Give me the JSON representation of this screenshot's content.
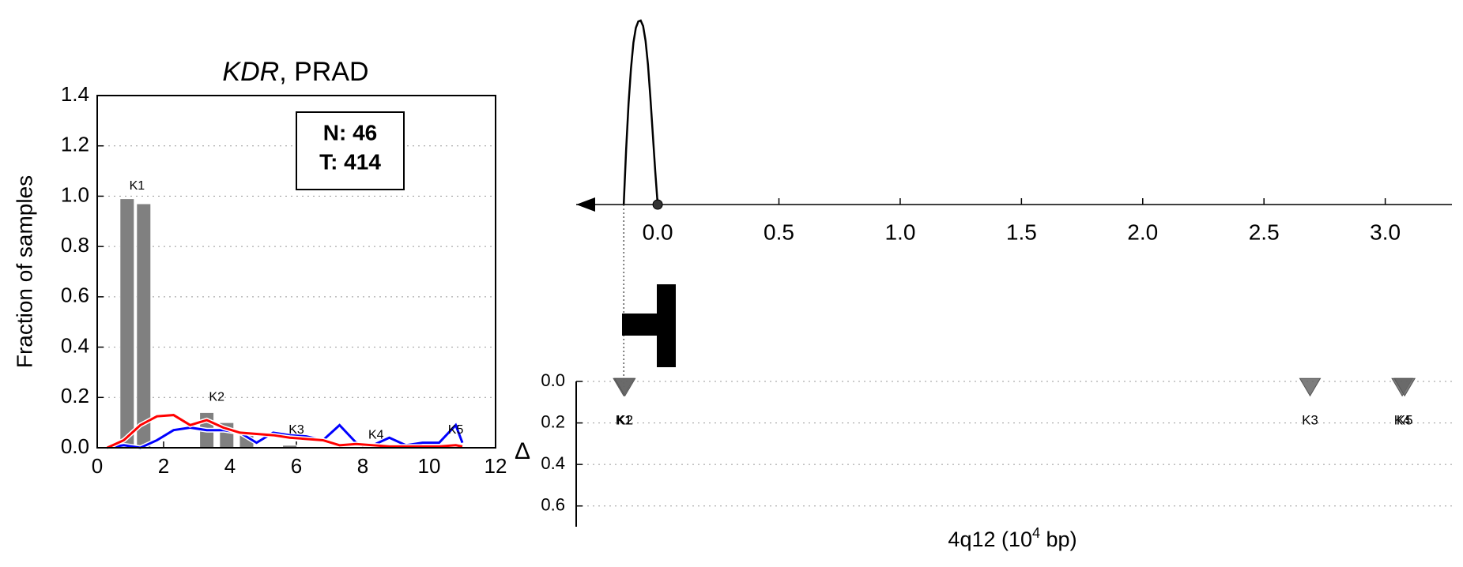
{
  "chart_data": [
    {
      "type": "bar",
      "title": [
        "KDR",
        ", PRAD"
      ],
      "ylabel": "Fraction of samples",
      "x": [
        0.9,
        1.4,
        3.3,
        3.9,
        4.5,
        5.8
      ],
      "values": [
        0.99,
        0.97,
        0.14,
        0.1,
        0.06,
        0.01
      ],
      "color": "#808080",
      "annotations": [
        {
          "text": "K1",
          "x": 1.2,
          "y": 1.04
        },
        {
          "text": "K2",
          "x": 3.6,
          "y": 0.2
        },
        {
          "text": "K3",
          "x": 6.0,
          "y": 0.07
        },
        {
          "text": "K4",
          "x": 8.4,
          "y": 0.05
        },
        {
          "text": "K5",
          "x": 10.8,
          "y": 0.07
        }
      ],
      "legend": [
        "N: 46",
        "T: 414"
      ],
      "series": [
        {
          "color": "#0000ff",
          "x": [
            0.3,
            0.8,
            1.3,
            1.8,
            2.3,
            2.8,
            3.3,
            3.8,
            4.3,
            4.8,
            5.3,
            5.8,
            6.3,
            6.8,
            7.3,
            7.8,
            8.3,
            8.8,
            9.3,
            9.8,
            10.3,
            10.8,
            11.0
          ],
          "values": [
            0,
            0.01,
            0,
            0.03,
            0.07,
            0.08,
            0.07,
            0.07,
            0.06,
            0.02,
            0.06,
            0.05,
            0.045,
            0.03,
            0.09,
            0.02,
            0.01,
            0.04,
            0.01,
            0.02,
            0.02,
            0.09,
            0.02
          ]
        },
        {
          "color": "#ff0000",
          "x": [
            0.3,
            0.8,
            1.3,
            1.8,
            2.3,
            2.8,
            3.3,
            3.8,
            4.3,
            4.8,
            5.3,
            5.8,
            6.3,
            6.8,
            7.3,
            7.8,
            8.3,
            8.8,
            9.3,
            9.8,
            10.3,
            10.8,
            11.0
          ],
          "values": [
            0,
            0.03,
            0.09,
            0.125,
            0.13,
            0.09,
            0.11,
            0.08,
            0.06,
            0.055,
            0.05,
            0.04,
            0.035,
            0.03,
            0.01,
            0.015,
            0.01,
            0.005,
            0.005,
            0.005,
            0.005,
            0.01,
            0.005
          ]
        }
      ],
      "xlim": [
        0,
        12
      ],
      "ylim": [
        0,
        1.4
      ],
      "xticks": [
        0,
        2,
        4,
        6,
        8,
        10,
        12
      ],
      "yticks": [
        {
          "value": 0,
          "label": "0.0"
        },
        {
          "value": 0.2,
          "label": "0.2"
        },
        {
          "value": 0.4,
          "label": "0.4"
        },
        {
          "value": 0.6,
          "label": "0.6"
        },
        {
          "value": 0.8,
          "label": "0.8"
        },
        {
          "value": 1,
          "label": "1.0"
        },
        {
          "value": 1.2,
          "label": "1.2"
        },
        {
          "value": 1.4,
          "label": "1.4"
        }
      ],
      "grid": true
    },
    {
      "type": "line",
      "x": [
        -0.14,
        -0.13,
        -0.12,
        -0.11,
        -0.1,
        -0.09,
        -0.08,
        -0.07,
        -0.06,
        -0.05,
        -0.04,
        -0.03,
        -0.02,
        -0.01,
        0
      ],
      "values": [
        0,
        0.3,
        0.55,
        0.74,
        0.88,
        0.96,
        0.995,
        1,
        0.97,
        0.89,
        0.76,
        0.58,
        0.38,
        0.18,
        0
      ],
      "color": "#000000",
      "marker": {
        "x": 0,
        "y": 0
      },
      "xlim": [
        -0.336,
        3.275
      ],
      "ylim": [
        0,
        1
      ],
      "xticks": [
        {
          "value": 0,
          "label": "0.0"
        },
        {
          "value": 0.5,
          "label": "0.5"
        },
        {
          "value": 1,
          "label": "1.0"
        },
        {
          "value": 1.5,
          "label": "1.5"
        },
        {
          "value": 2,
          "label": "2.0"
        },
        {
          "value": 2.5,
          "label": "2.5"
        },
        {
          "value": 3,
          "label": "3.0"
        }
      ]
    },
    {
      "type": "scatter",
      "ylabel": "Δ",
      "xlabel": [
        "4q12 (10",
        "4",
        " bp)"
      ],
      "labels": [
        "K1",
        "K2",
        "K3",
        "K4",
        "K5"
      ],
      "x": [
        -0.14,
        -0.135,
        2.69,
        3.07,
        3.08
      ],
      "values": [
        0.02,
        0.02,
        0.02,
        0.02,
        0.02
      ],
      "color": "#666666",
      "xlim": [
        -0.336,
        3.275
      ],
      "ylim": [
        0,
        0.7
      ],
      "inverted_y": true,
      "yticks": [
        {
          "value": 0,
          "label": "0.0"
        },
        {
          "value": 0.2,
          "label": "0.2"
        },
        {
          "value": 0.4,
          "label": "0.4"
        },
        {
          "value": 0.6,
          "label": "0.6"
        }
      ],
      "grid": true
    }
  ]
}
